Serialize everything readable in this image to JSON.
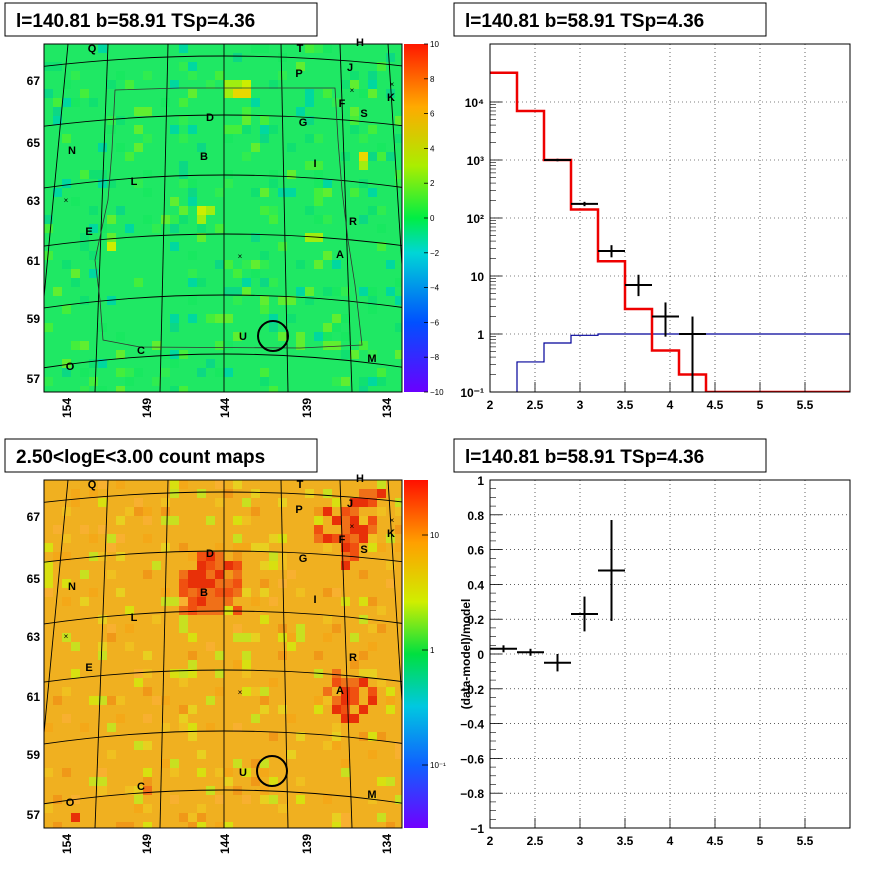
{
  "panels": {
    "tl": {
      "title": "l=140.81 b=58.91 TSp=4.36"
    },
    "tr": {
      "title": "l=140.81 b=58.91 TSp=4.36"
    },
    "bl": {
      "title": "2.50<logE<3.00 count maps"
    },
    "br": {
      "title": "l=140.81 b=58.91 TSp=4.36"
    }
  },
  "maps": {
    "lon_ticks": [
      "154",
      "149",
      "144",
      "139",
      "134"
    ],
    "lat_ticks": [
      "67",
      "65",
      "63",
      "61",
      "59",
      "57"
    ],
    "sources": [
      "Q",
      "T",
      "H",
      "J",
      "P",
      "F",
      "K",
      "S",
      "D",
      "G",
      "N",
      "B",
      "I",
      "L",
      "E",
      "R",
      "A",
      "U",
      "C",
      "M",
      "O"
    ]
  },
  "colorbars": {
    "tl": {
      "ticks": [
        "10",
        "8",
        "6",
        "4",
        "2",
        "0",
        "−2",
        "−4",
        "−6",
        "−8",
        "−10"
      ],
      "range": [
        -10,
        10
      ]
    },
    "bl": {
      "ticks": [
        "10",
        "1",
        "10⁻¹"
      ]
    }
  },
  "colors": {
    "model": "#ee0000",
    "secondary": "#000099",
    "data": "#000000"
  },
  "chart_data": [
    {
      "type": "line",
      "panel": "spectrum",
      "title": "l=140.81 b=58.91 TSp=4.36",
      "xlim": [
        2,
        6
      ],
      "ylim": [
        0.1,
        100000
      ],
      "yscale": "log",
      "xticks": [
        "2",
        "2.5",
        "3",
        "3.5",
        "4",
        "4.5",
        "5",
        "5.5"
      ],
      "yticks": [
        "10⁻¹",
        "1",
        "10",
        "10²",
        "10³",
        "10⁴"
      ],
      "grid": true,
      "series": [
        {
          "role": "model",
          "style": "step",
          "edges": [
            2.0,
            2.3,
            2.6,
            2.9,
            3.2,
            3.5,
            3.8,
            4.1,
            4.4,
            6.0
          ],
          "values": [
            32000,
            7000,
            1000,
            140,
            18,
            2.7,
            0.52,
            0.2,
            0.1
          ]
        },
        {
          "role": "secondary",
          "style": "step",
          "edges": [
            2.0,
            2.3,
            2.6,
            2.9,
            3.2,
            6.0
          ],
          "values": [
            0.05,
            0.33,
            0.7,
            0.95,
            1.0
          ]
        },
        {
          "role": "data",
          "style": "errorbar",
          "points": [
            {
              "x": 2.75,
              "xerr": 0.15,
              "y": 1000,
              "ylo": 950,
              "yhi": 1050
            },
            {
              "x": 3.05,
              "xerr": 0.15,
              "y": 175,
              "ylo": 160,
              "yhi": 190
            },
            {
              "x": 3.35,
              "xerr": 0.15,
              "y": 27,
              "ylo": 21,
              "yhi": 34
            },
            {
              "x": 3.65,
              "xerr": 0.15,
              "y": 7,
              "ylo": 4.5,
              "yhi": 10.5
            },
            {
              "x": 3.95,
              "xerr": 0.15,
              "y": 2,
              "ylo": 0.9,
              "yhi": 3.5
            },
            {
              "x": 4.25,
              "xerr": 0.15,
              "y": 1,
              "ylo": 0.1,
              "yhi": 2
            }
          ]
        }
      ]
    },
    {
      "type": "scatter",
      "panel": "residuals",
      "title": "l=140.81 b=58.91 TSp=4.36",
      "ylabel": "(data-model)/model",
      "xlim": [
        2,
        6
      ],
      "ylim": [
        -1,
        1
      ],
      "xticks": [
        "2",
        "2.5",
        "3",
        "3.5",
        "4",
        "4.5",
        "5",
        "5.5"
      ],
      "yticks": [
        "−1",
        "−0.8",
        "−0.6",
        "−0.4",
        "−0.2",
        "0",
        "0.2",
        "0.4",
        "0.6",
        "0.8",
        "1"
      ],
      "grid": true,
      "points": [
        {
          "x": 2.15,
          "xerr": 0.15,
          "y": 0.03,
          "yerr": 0.02
        },
        {
          "x": 2.45,
          "xerr": 0.15,
          "y": 0.01,
          "yerr": 0.02
        },
        {
          "x": 2.75,
          "xerr": 0.15,
          "y": -0.05,
          "yerr": 0.05
        },
        {
          "x": 3.05,
          "xerr": 0.15,
          "y": 0.23,
          "yerr": 0.1
        },
        {
          "x": 3.35,
          "xerr": 0.15,
          "y": 0.48,
          "yerr": 0.29
        }
      ]
    }
  ]
}
